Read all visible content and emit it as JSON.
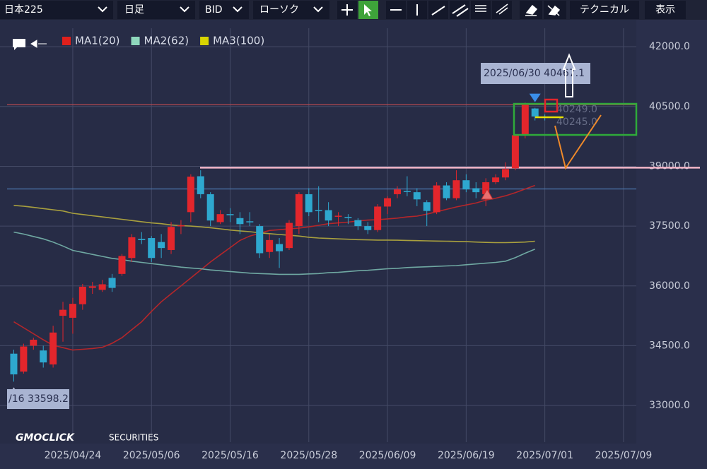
{
  "toolbar": {
    "symbol": "日本225",
    "period": "日足",
    "side": "BID",
    "style": "ローソク",
    "technical": "テクニカル",
    "display": "表示"
  },
  "logo": {
    "brand": "GMOCLICK",
    "sub": "SECURITIES"
  },
  "chart_data": {
    "type": "candlestick",
    "up_color": "#e3262c",
    "down_color": "#2ea8cf",
    "open": [
      34300,
      33850,
      34500,
      34380,
      34030,
      35250,
      35200,
      35540,
      35950,
      35900,
      36200,
      36300,
      36700,
      37180,
      37200,
      37100,
      36900,
      37500,
      37850,
      38750,
      38300,
      37600,
      37800,
      37700,
      37620,
      37500,
      36850,
      37050,
      36950,
      37500,
      38300,
      37900,
      37900,
      37750,
      37730,
      37650,
      37500,
      37400,
      37990,
      38300,
      38380,
      38350,
      38100,
      37850,
      38520,
      38200,
      38650,
      38450,
      38300,
      38600,
      38720,
      38950,
      39800,
      40450,
      40249
    ],
    "high": [
      34400,
      34550,
      34700,
      34500,
      35000,
      35600,
      35700,
      36050,
      36100,
      36150,
      36300,
      36800,
      37300,
      37350,
      37250,
      37300,
      37600,
      37650,
      38800,
      38900,
      38350,
      37900,
      37950,
      37850,
      37850,
      37550,
      37300,
      37200,
      37650,
      38350,
      38450,
      38500,
      38100,
      37850,
      37800,
      37700,
      37600,
      38050,
      38250,
      38500,
      38750,
      38450,
      38150,
      38600,
      38600,
      38900,
      38800,
      38600,
      38700,
      38800,
      39100,
      39800,
      40600,
      40467.1,
      40300
    ],
    "low": [
      33598.2,
      33800,
      34400,
      33950,
      33950,
      34600,
      34800,
      35400,
      35800,
      35850,
      35850,
      36250,
      36600,
      37050,
      36600,
      36700,
      36800,
      37300,
      37600,
      38200,
      37500,
      37550,
      37600,
      37300,
      37500,
      36700,
      36700,
      36450,
      36900,
      37300,
      37750,
      37600,
      37500,
      37500,
      37550,
      37400,
      37300,
      37350,
      37800,
      38200,
      38250,
      38000,
      37500,
      37800,
      38150,
      38150,
      38350,
      38200,
      38000,
      38550,
      38650,
      38900,
      39700,
      40150,
      40150
    ],
    "close": [
      33780,
      34480,
      34650,
      34080,
      34830,
      35400,
      35550,
      35980,
      35990,
      36040,
      35950,
      36750,
      37220,
      37150,
      36700,
      36950,
      37480,
      37520,
      38740,
      38300,
      37640,
      37800,
      37790,
      37550,
      37600,
      36820,
      37150,
      36870,
      37580,
      38300,
      37850,
      37880,
      37640,
      37760,
      37710,
      37500,
      37400,
      37990,
      38200,
      38420,
      38370,
      38170,
      37880,
      38520,
      38200,
      38650,
      38420,
      38350,
      38600,
      38720,
      38930,
      39780,
      40550,
      40250,
      40245
    ],
    "series": [
      {
        "name": "MA1(20)",
        "color": "#e0201c",
        "line_color": "#b5262a",
        "values": [
          35100,
          34950,
          34800,
          34650,
          34510,
          34450,
          34390,
          34410,
          34430,
          34460,
          34560,
          34700,
          34900,
          35100,
          35360,
          35600,
          35800,
          36000,
          36200,
          36400,
          36600,
          36780,
          36960,
          37140,
          37250,
          37320,
          37390,
          37410,
          37430,
          37450,
          37480,
          37520,
          37560,
          37580,
          37600,
          37630,
          37650,
          37660,
          37680,
          37700,
          37730,
          37750,
          37800,
          37860,
          37920,
          37980,
          38030,
          38080,
          38150,
          38200,
          38260,
          38340,
          38430,
          38520,
          null
        ]
      },
      {
        "name": "MA2(62)",
        "color": "#8fd8bd",
        "line_color": "#6fa8a2",
        "values": [
          37350,
          37300,
          37240,
          37180,
          37100,
          37000,
          36890,
          36840,
          36790,
          36740,
          36690,
          36660,
          36620,
          36590,
          36560,
          36530,
          36500,
          36470,
          36450,
          36430,
          36400,
          36380,
          36360,
          36340,
          36320,
          36310,
          36300,
          36290,
          36290,
          36290,
          36300,
          36310,
          36330,
          36340,
          36360,
          36380,
          36390,
          36410,
          36430,
          36440,
          36460,
          36470,
          36480,
          36490,
          36500,
          36510,
          36530,
          36550,
          36570,
          36590,
          36620,
          36710,
          36820,
          36920,
          null
        ]
      },
      {
        "name": "MA3(100)",
        "color": "#d8d400",
        "line_color": "#a9a03e",
        "values": [
          38020,
          38000,
          37970,
          37940,
          37910,
          37880,
          37820,
          37790,
          37760,
          37730,
          37700,
          37670,
          37640,
          37610,
          37580,
          37560,
          37530,
          37510,
          37500,
          37480,
          37460,
          37430,
          37400,
          37380,
          37360,
          37330,
          37310,
          37290,
          37270,
          37250,
          37220,
          37200,
          37190,
          37180,
          37170,
          37160,
          37155,
          37150,
          37150,
          37145,
          37140,
          37135,
          37130,
          37125,
          37120,
          37115,
          37110,
          37100,
          37090,
          37085,
          37085,
          37090,
          37100,
          37120,
          null
        ]
      }
    ],
    "ylim": [
      32080,
      42640
    ],
    "yticks": [
      {
        "value": 33000,
        "label": "33000.0"
      },
      {
        "value": 34500,
        "label": "34500.0"
      },
      {
        "value": 36000,
        "label": "36000.0"
      },
      {
        "value": 37500,
        "label": "37500.0"
      },
      {
        "value": 39000,
        "label": "39000.0"
      },
      {
        "value": 40500,
        "label": "40500.0"
      },
      {
        "value": 42000,
        "label": "42000.0"
      }
    ],
    "xlim": [
      -1.4,
      63.3
    ],
    "xticks": [
      {
        "value": 6,
        "label": "2025/04/24"
      },
      {
        "value": 14,
        "label": "2025/05/06"
      },
      {
        "value": 22,
        "label": "2025/05/16"
      },
      {
        "value": 30,
        "label": "2025/05/28"
      },
      {
        "value": 38,
        "label": "2025/06/09"
      },
      {
        "value": 46,
        "label": "2025/06/19"
      },
      {
        "value": 54,
        "label": "2025/07/01"
      },
      {
        "value": 62,
        "label": "2025/07/09"
      }
    ],
    "grid": true,
    "hlines": [
      {
        "value": 40545,
        "color": "#b84a52"
      },
      {
        "value": 38432,
        "color": "#4d78b0"
      },
      {
        "value": 38965,
        "color": "#f3b6c8"
      }
    ],
    "annotations": [
      {
        "text": "2025/06/30 40467.1"
      },
      {
        "text": "/16 33598.2"
      },
      {
        "text": "40249.0"
      },
      {
        "text": "40245.0"
      }
    ]
  }
}
